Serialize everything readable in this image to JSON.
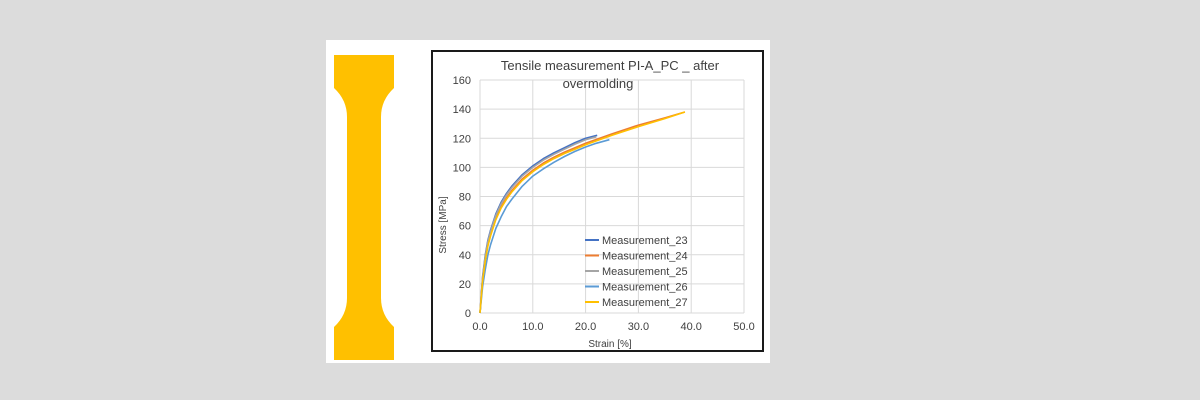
{
  "specimen": {
    "icon": "dog-bone-tensile-specimen",
    "color": "#FFC000"
  },
  "chart_data": {
    "type": "line",
    "title_line1": "Tensile measurement PI-A_PC _ after",
    "title_line2": "overmolding",
    "xlabel": "Strain [%]",
    "ylabel": "Stress [MPa]",
    "xlim": [
      0,
      50
    ],
    "ylim": [
      0,
      160
    ],
    "xticks": [
      "0.0",
      "10.0",
      "20.0",
      "30.0",
      "40.0",
      "50.0"
    ],
    "yticks": [
      "0",
      "20",
      "40",
      "60",
      "80",
      "100",
      "120",
      "140",
      "160"
    ],
    "grid": true,
    "legend_position": "bottom-right",
    "series": [
      {
        "name": "Measurement_23",
        "color": "#4472C4",
        "x": [
          0,
          0.5,
          1,
          1.5,
          2,
          3,
          4,
          5,
          6,
          8,
          10,
          12,
          14,
          16,
          18,
          20,
          22.2
        ],
        "y": [
          0,
          25,
          40,
          50,
          57,
          68,
          76,
          82,
          87,
          95,
          101,
          106,
          110,
          113.5,
          117,
          120,
          122
        ]
      },
      {
        "name": "Measurement_24",
        "color": "#ED7D31",
        "x": [
          0,
          0.5,
          1,
          1.5,
          2,
          3,
          4,
          5,
          6,
          8,
          10,
          12,
          14,
          16,
          18,
          20,
          25,
          30,
          35,
          38.8
        ],
        "y": [
          0,
          23,
          37,
          47,
          54,
          65,
          73,
          79,
          84,
          92,
          98,
          103,
          107,
          110.5,
          113.5,
          116.5,
          123,
          129,
          134,
          138
        ]
      },
      {
        "name": "Measurement_25",
        "color": "#A5A5A5",
        "x": [
          0,
          0.5,
          1,
          1.5,
          2,
          3,
          4,
          5,
          6,
          8,
          10,
          12,
          14,
          16,
          18,
          20,
          22
        ],
        "y": [
          0,
          24,
          39,
          49,
          56,
          67,
          75,
          81,
          86,
          94,
          100,
          105,
          109,
          112.5,
          116,
          119,
          121
        ]
      },
      {
        "name": "Measurement_26",
        "color": "#5B9BD5",
        "x": [
          0,
          0.5,
          1,
          1.5,
          2,
          3,
          4,
          5,
          6,
          8,
          10,
          12,
          14,
          16,
          18,
          20,
          22,
          24.5
        ],
        "y": [
          0,
          18,
          30,
          40,
          47,
          58,
          66,
          73,
          78,
          87,
          94,
          99,
          103.5,
          107.5,
          111,
          114,
          116.5,
          119
        ]
      },
      {
        "name": "Measurement_27",
        "color": "#FFC000",
        "x": [
          0,
          0.5,
          1,
          1.5,
          2,
          3,
          4,
          5,
          6,
          8,
          10,
          12,
          14,
          16,
          18,
          20,
          25,
          30,
          35,
          38.8
        ],
        "y": [
          0,
          22,
          36,
          46,
          53,
          64,
          72,
          78,
          83,
          91,
          97,
          102,
          106,
          109.5,
          112.5,
          115.5,
          122,
          128,
          133.5,
          138
        ]
      }
    ]
  }
}
